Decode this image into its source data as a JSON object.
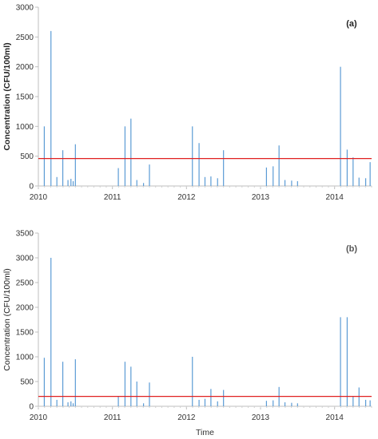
{
  "chart_data": [
    {
      "type": "bar",
      "panel_label": "(a)",
      "ylabel": "Concentration (CFU/100ml)",
      "xlabel": "",
      "ylim": [
        0,
        3000
      ],
      "yticks": [
        "0",
        "500",
        "1000",
        "1500",
        "2000",
        "2500",
        "3000"
      ],
      "xlim": [
        2010,
        2014.5
      ],
      "xticks": [
        "2010",
        "2011",
        "2012",
        "2013",
        "2014"
      ],
      "grid": false,
      "bar_color": "#5b9bd5",
      "threshold": {
        "value": 460,
        "color": "#e02020"
      },
      "series": [
        {
          "x": [
            2010.08,
            2010.17,
            2010.25,
            2010.33,
            2010.4,
            2010.44,
            2010.47,
            2010.5,
            2011.08,
            2011.17,
            2011.25,
            2011.33,
            2011.42,
            2011.5,
            2012.08,
            2012.17,
            2012.25,
            2012.33,
            2012.42,
            2012.5,
            2013.08,
            2013.17,
            2013.25,
            2013.33,
            2013.42,
            2013.5,
            2014.08,
            2014.17,
            2014.25,
            2014.33,
            2014.42,
            2014.48
          ],
          "values": [
            1000,
            2600,
            150,
            600,
            100,
            120,
            80,
            700,
            300,
            1000,
            1130,
            100,
            50,
            360,
            1000,
            720,
            150,
            160,
            130,
            600,
            310,
            330,
            680,
            100,
            90,
            80,
            2000,
            610,
            480,
            140,
            130,
            400
          ]
        }
      ]
    },
    {
      "type": "bar",
      "panel_label": "(b)",
      "ylabel": "Concentration (CFU/100ml)",
      "xlabel": "Time",
      "ylim": [
        0,
        3500
      ],
      "yticks": [
        "0",
        "500",
        "1000",
        "1500",
        "2000",
        "2500",
        "3000",
        "3500"
      ],
      "xlim": [
        2010,
        2014.5
      ],
      "xticks": [
        "2010",
        "2011",
        "2012",
        "2013",
        "2014"
      ],
      "grid": false,
      "bar_color": "#5b9bd5",
      "threshold": {
        "value": 200,
        "color": "#e02020"
      },
      "series": [
        {
          "x": [
            2010.08,
            2010.17,
            2010.25,
            2010.33,
            2010.4,
            2010.44,
            2010.47,
            2010.5,
            2011.08,
            2011.17,
            2011.25,
            2011.33,
            2011.42,
            2011.5,
            2012.08,
            2012.17,
            2012.25,
            2012.33,
            2012.42,
            2012.5,
            2013.08,
            2013.17,
            2013.25,
            2013.33,
            2013.42,
            2013.5,
            2014.08,
            2014.17,
            2014.25,
            2014.33,
            2014.42,
            2014.48
          ],
          "values": [
            980,
            3000,
            130,
            900,
            80,
            100,
            60,
            950,
            200,
            900,
            800,
            500,
            60,
            480,
            1000,
            130,
            150,
            350,
            100,
            330,
            110,
            120,
            390,
            80,
            70,
            60,
            1800,
            1800,
            200,
            380,
            130,
            120
          ]
        }
      ]
    }
  ]
}
